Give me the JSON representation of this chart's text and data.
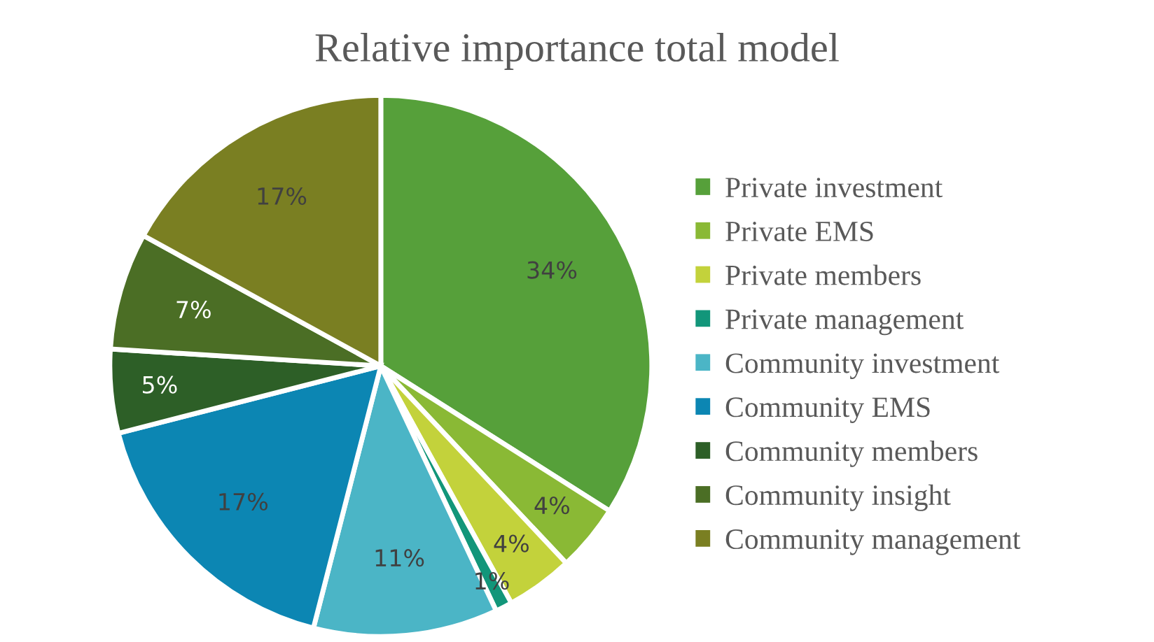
{
  "chart_data": {
    "type": "pie",
    "title": "Relative importance total model",
    "categories": [
      "Private investment",
      "Private EMS",
      "Private members",
      "Private management",
      "Community investment",
      "Community EMS",
      "Community members",
      "Community insight",
      "Community management"
    ],
    "values": [
      34,
      4,
      4,
      1,
      11,
      17,
      5,
      7,
      17
    ],
    "colors": [
      "#56a03a",
      "#8ab935",
      "#c3d23b",
      "#12967a",
      "#4bb5c6",
      "#0c86b3",
      "#2d5f27",
      "#4b6e25",
      "#7a7f22"
    ],
    "value_labels": [
      "34%",
      "4%",
      "4%",
      "1%",
      "11%",
      "17%",
      "5%",
      "7%",
      "17%"
    ],
    "legend": "right"
  }
}
